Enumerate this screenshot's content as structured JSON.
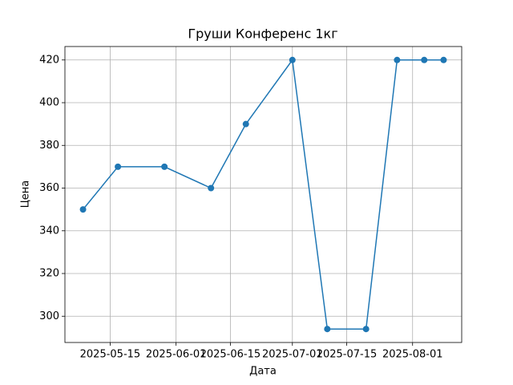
{
  "chart_data": {
    "type": "line",
    "title": "Груши Конференс 1кг",
    "xlabel": "Дата",
    "ylabel": "Цена",
    "x": [
      "2025-05-08",
      "2025-05-17",
      "2025-05-29",
      "2025-06-10",
      "2025-06-19",
      "2025-07-01",
      "2025-07-10",
      "2025-07-20",
      "2025-07-28",
      "2025-08-04",
      "2025-08-09"
    ],
    "values": [
      350,
      370,
      370,
      360,
      390,
      420,
      294,
      294,
      420,
      420,
      420
    ],
    "color": "#1f77b4",
    "xlim": [
      "2025-05-03T08:00",
      "2025-08-13T16:00"
    ],
    "xticks": [
      "2025-05-15",
      "2025-06-01",
      "2025-06-15",
      "2025-07-01",
      "2025-07-15",
      "2025-08-01"
    ],
    "ylim": [
      287.7,
      426.3
    ],
    "yticks": [
      300,
      320,
      340,
      360,
      380,
      400,
      420
    ],
    "grid": true
  }
}
